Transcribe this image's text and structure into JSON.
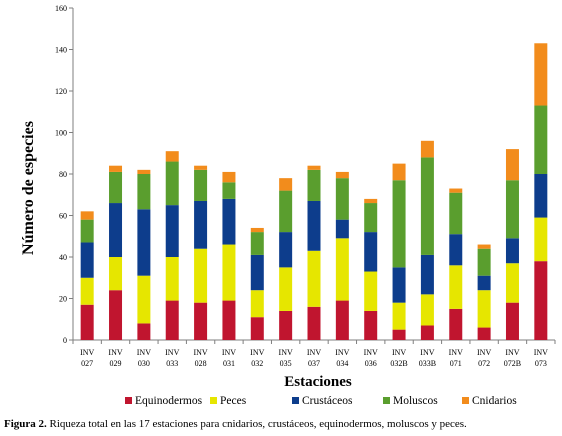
{
  "chart_data": {
    "type": "bar",
    "stacked": true,
    "xlabel": "Estaciones",
    "ylabel": "Número de especies",
    "ylim": [
      0,
      160
    ],
    "yticks": [
      0,
      20,
      40,
      60,
      80,
      100,
      120,
      140,
      160
    ],
    "grid": false,
    "legend_position": "bottom",
    "categories": [
      [
        "INV",
        "027"
      ],
      [
        "INV",
        "029"
      ],
      [
        "INV",
        "030"
      ],
      [
        "INV",
        "033"
      ],
      [
        "INV",
        "028"
      ],
      [
        "INV",
        "031"
      ],
      [
        "INV",
        "032"
      ],
      [
        "INV",
        "035"
      ],
      [
        "INV",
        "037"
      ],
      [
        "INV",
        "034"
      ],
      [
        "INV",
        "036"
      ],
      [
        "INV",
        "032B"
      ],
      [
        "INV",
        "033B"
      ],
      [
        "INV",
        "071"
      ],
      [
        "INV",
        "072"
      ],
      [
        "INV",
        "072B"
      ],
      [
        "INV",
        "073"
      ]
    ],
    "series": [
      {
        "name": "Equinodermos",
        "color": "#c0152f",
        "values": [
          17,
          24,
          8,
          19,
          18,
          19,
          11,
          14,
          16,
          19,
          14,
          5,
          7,
          15,
          6,
          18,
          38
        ]
      },
      {
        "name": "Peces",
        "color": "#e6e600",
        "values": [
          13,
          16,
          23,
          21,
          26,
          27,
          13,
          21,
          27,
          30,
          19,
          13,
          15,
          21,
          18,
          19,
          21
        ]
      },
      {
        "name": "Crustáceos",
        "color": "#0d3d8c",
        "values": [
          17,
          26,
          32,
          25,
          23,
          22,
          17,
          17,
          24,
          9,
          19,
          17,
          19,
          15,
          7,
          12,
          21
        ]
      },
      {
        "name": "Moluscos",
        "color": "#5a9e2e",
        "values": [
          11,
          15,
          17,
          21,
          15,
          8,
          11,
          20,
          15,
          20,
          14,
          42,
          47,
          20,
          13,
          28,
          33
        ]
      },
      {
        "name": "Cnidarios",
        "color": "#f28c1c",
        "values": [
          4,
          3,
          2,
          5,
          2,
          5,
          2,
          6,
          2,
          3,
          2,
          8,
          8,
          2,
          2,
          15,
          30
        ]
      }
    ]
  },
  "caption": {
    "label": "Figura 2.",
    "text": " Riqueza total en las 17 estaciones para cnidarios, crustáceos, equinodermos, moluscos y peces."
  }
}
